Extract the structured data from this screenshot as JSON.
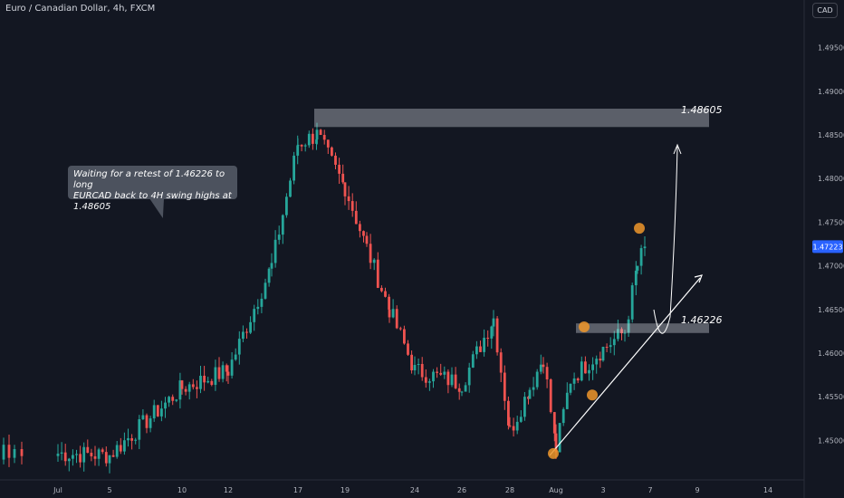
{
  "header": {
    "title": "Euro / Canadian Dollar, 4h, FXCM",
    "currency_button": "CAD"
  },
  "annotation": {
    "callout_line1": "Waiting for a retest of 1.46226 to long",
    "callout_line2": "EURCAD back to 4H swing highs at 1.48605",
    "level_high_label": "1.48605",
    "level_low_label": "1.46226"
  },
  "colors": {
    "background": "#131722",
    "up": "#26a69a",
    "down": "#ef5350",
    "price_tag": "#2962ff",
    "zone": "#d1d4dc",
    "marker": "#f0962a"
  },
  "chart_data": {
    "type": "candlestick",
    "title": "Euro / Canadian Dollar, 4h, FXCM",
    "ylim": [
      1.4475,
      1.5
    ],
    "yticks": [
      1.45,
      1.455,
      1.46,
      1.465,
      1.47,
      1.475,
      1.48,
      1.485,
      1.49,
      1.495
    ],
    "ytick_labels": [
      "1.45000",
      "1.45500",
      "1.46000",
      "1.46500",
      "1.47000",
      "1.47500",
      "1.48000",
      "1.48500",
      "1.49000",
      "1.49500"
    ],
    "xtick_labels": [
      "Jul",
      "5",
      "10",
      "12",
      "17",
      "19",
      "24",
      "26",
      "28",
      "Aug",
      "3",
      "7",
      "9",
      "14"
    ],
    "current_price": "1.47223",
    "grid": false,
    "anchors": [
      {
        "tick": "Jul",
        "close": 1.4485
      },
      {
        "tick": "5",
        "close": 1.4483
      },
      {
        "tick": "10",
        "close": 1.456
      },
      {
        "tick": "12",
        "close": 1.458
      },
      {
        "tick": "",
        "close": 1.47
      },
      {
        "tick": "17",
        "close": 1.484
      },
      {
        "tick": "",
        "close": 1.485
      },
      {
        "tick": "19",
        "close": 1.479
      },
      {
        "tick": "",
        "close": 1.472
      },
      {
        "tick": "",
        "close": 1.465
      },
      {
        "tick": "24",
        "close": 1.458
      },
      {
        "tick": "26",
        "close": 1.4565
      },
      {
        "tick": "",
        "close": 1.464
      },
      {
        "tick": "28",
        "close": 1.451
      },
      {
        "tick": "",
        "close": 1.456
      },
      {
        "tick": "",
        "close": 1.4595
      },
      {
        "tick": "Aug",
        "close": 1.449
      },
      {
        "tick": "",
        "close": 1.457
      },
      {
        "tick": "3",
        "close": 1.4605
      },
      {
        "tick": "",
        "close": 1.4625
      },
      {
        "tick": "",
        "close": 1.47
      },
      {
        "tick": "7",
        "close": 1.4722
      }
    ],
    "zones": [
      {
        "name": "swing-high",
        "from": 1.4859,
        "to": 1.488,
        "label": "1.48605"
      },
      {
        "name": "retest",
        "from": 1.4623,
        "to": 1.4634,
        "label": "1.46226"
      }
    ],
    "markers": [
      1.4485,
      1.4552,
      1.463,
      1.4743
    ]
  }
}
